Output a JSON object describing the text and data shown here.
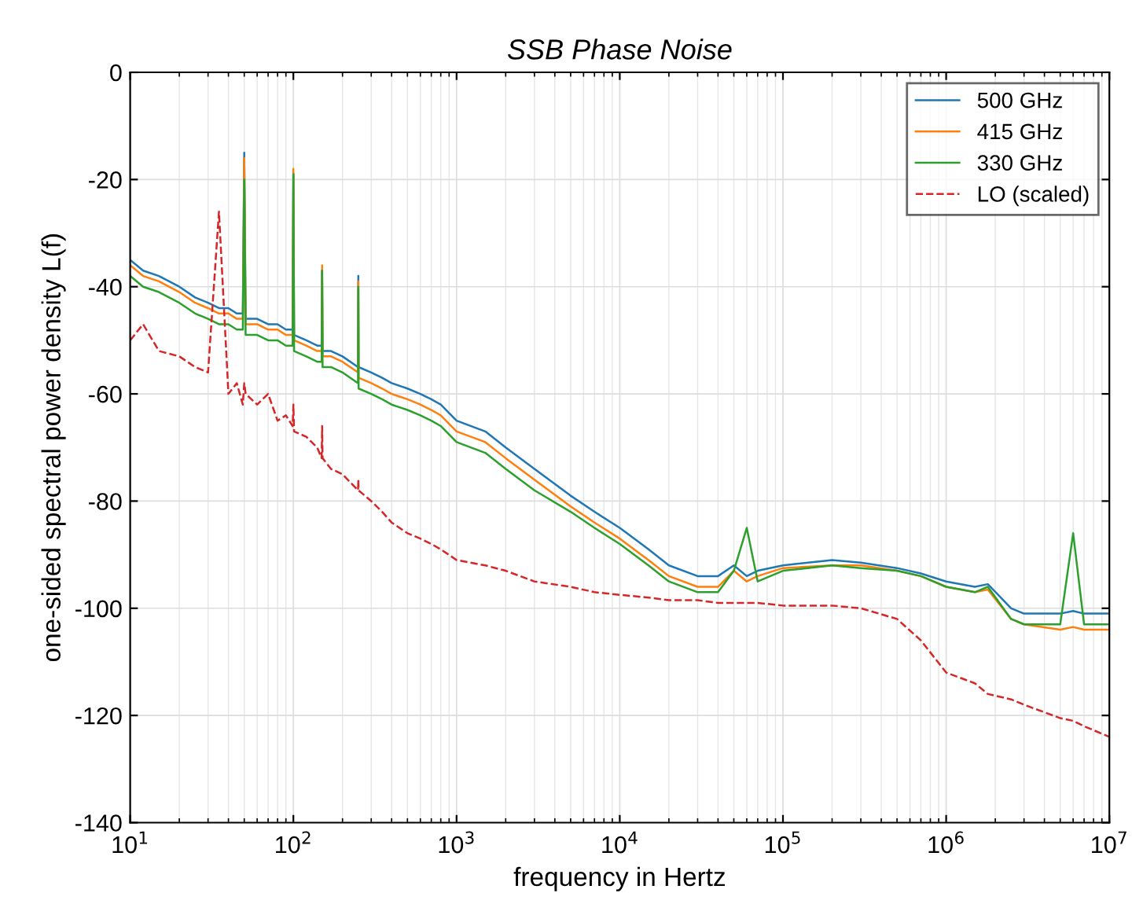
{
  "chart_data": {
    "type": "line",
    "title": "SSB Phase Noise",
    "xlabel": "frequency in Hertz",
    "ylabel": "one-sided spectral power density L(f)",
    "log": "x",
    "grid": true,
    "legend": "top right",
    "xlim": [
      10,
      10000000
    ],
    "xticks": [
      {
        "value": 10,
        "label": "10$^{1}$"
      },
      {
        "value": 100,
        "label": "10$^{2}$"
      },
      {
        "value": 1000,
        "label": "10$^{3}$"
      },
      {
        "value": 10000,
        "label": "10$^{4}$"
      },
      {
        "value": 100000,
        "label": "10$^{5}$"
      },
      {
        "value": 1000000,
        "label": "10$^{6}$"
      },
      {
        "value": 10000000,
        "label": "10$^{7}$"
      }
    ],
    "ylim": [
      -140,
      0
    ],
    "yticks": [
      -140,
      -120,
      -100,
      -80,
      -60,
      -40,
      -20,
      0
    ],
    "x": [
      10,
      12,
      15,
      20,
      25,
      30,
      35,
      40,
      45,
      49,
      50,
      51,
      60,
      70,
      80,
      90,
      99,
      100,
      101,
      120,
      140,
      149,
      150,
      151,
      170,
      200,
      249,
      250,
      251,
      300,
      350,
      400,
      500,
      600,
      700,
      800,
      1000,
      1500,
      2000,
      3000,
      5000,
      7000,
      10000,
      15000,
      20000,
      30000,
      40000,
      50000,
      60000,
      70000,
      100000,
      200000,
      300000,
      500000,
      700000,
      1000000,
      1500000,
      1800000,
      2500000,
      3000000,
      5000000,
      6000000,
      7000000,
      10000000
    ],
    "series": [
      {
        "name": "500 GHz",
        "color": "#1f77b4",
        "line_style": "solid",
        "values": [
          -35,
          -37,
          -38,
          -40,
          -42,
          -43,
          -44,
          -44,
          -45,
          -45,
          -15,
          -46,
          -46,
          -47,
          -47,
          -48,
          -48,
          -19,
          -49,
          -50,
          -51,
          -51,
          -37,
          -52,
          -52,
          -53,
          -55,
          -38,
          -55,
          -56,
          -57,
          -58,
          -59,
          -60,
          -61,
          -62,
          -65,
          -67,
          -70,
          -74,
          -79,
          -82,
          -85,
          -89,
          -92,
          -94,
          -94,
          -92,
          -94,
          -93,
          -92,
          -91,
          -91.5,
          -92.5,
          -93.5,
          -95,
          -96,
          -95.5,
          -100,
          -101,
          -101,
          -100.5,
          -101,
          -101
        ]
      },
      {
        "name": "415 GHz",
        "color": "#ff7f0e",
        "line_style": "solid",
        "values": [
          -36,
          -38,
          -39,
          -41,
          -43,
          -44,
          -45,
          -45,
          -46,
          -46,
          -16,
          -47,
          -47,
          -48,
          -48,
          -49,
          -49,
          -18,
          -50,
          -51,
          -52,
          -52,
          -36,
          -53,
          -53,
          -54,
          -56,
          -39,
          -57,
          -58,
          -59,
          -60,
          -61,
          -62,
          -63,
          -64,
          -67,
          -69,
          -72,
          -76,
          -81,
          -84,
          -87,
          -91,
          -94,
          -96,
          -96,
          -93,
          -95,
          -94,
          -92.5,
          -92,
          -92,
          -93,
          -94,
          -96,
          -97,
          -96.5,
          -102,
          -103,
          -104,
          -103.5,
          -104,
          -104
        ]
      },
      {
        "name": "330 GHz",
        "color": "#2ca02c",
        "line_style": "solid",
        "values": [
          -38,
          -40,
          -41,
          -43,
          -45,
          -46,
          -47,
          -47,
          -48,
          -48,
          -20,
          -49,
          -49,
          -50,
          -50,
          -51,
          -51,
          -19,
          -52,
          -53,
          -54,
          -54,
          -37,
          -55,
          -55,
          -56,
          -58,
          -40,
          -59,
          -60,
          -61,
          -62,
          -63,
          -64,
          -65,
          -66,
          -69,
          -71,
          -74,
          -78,
          -82,
          -85,
          -88,
          -92,
          -95,
          -97,
          -97,
          -93,
          -85,
          -95,
          -93,
          -92,
          -92.5,
          -93,
          -94,
          -96,
          -97,
          -96,
          -102,
          -103,
          -103,
          -86,
          -103,
          -103
        ]
      },
      {
        "name": "LO (scaled)",
        "color": "#d62728",
        "line_style": "dashed",
        "values": [
          -50,
          -47,
          -52,
          -53,
          -55,
          -56,
          -26,
          -60,
          -58,
          -62,
          -58,
          -60,
          -62,
          -60,
          -65,
          -64,
          -66,
          -62,
          -67,
          -68,
          -70,
          -72,
          -66,
          -72,
          -74,
          -75,
          -78,
          -76,
          -78,
          -80,
          -82,
          -84,
          -86,
          -87,
          -88,
          -89,
          -91,
          -92,
          -93,
          -95,
          -96,
          -97,
          -97.5,
          -98,
          -98.5,
          -98.5,
          -99,
          -99,
          -99,
          -99,
          -99.5,
          -99.5,
          -100,
          -102,
          -106,
          -112,
          -114,
          -116,
          -117,
          -118,
          -120.5,
          -121,
          -122,
          -124
        ]
      }
    ]
  }
}
